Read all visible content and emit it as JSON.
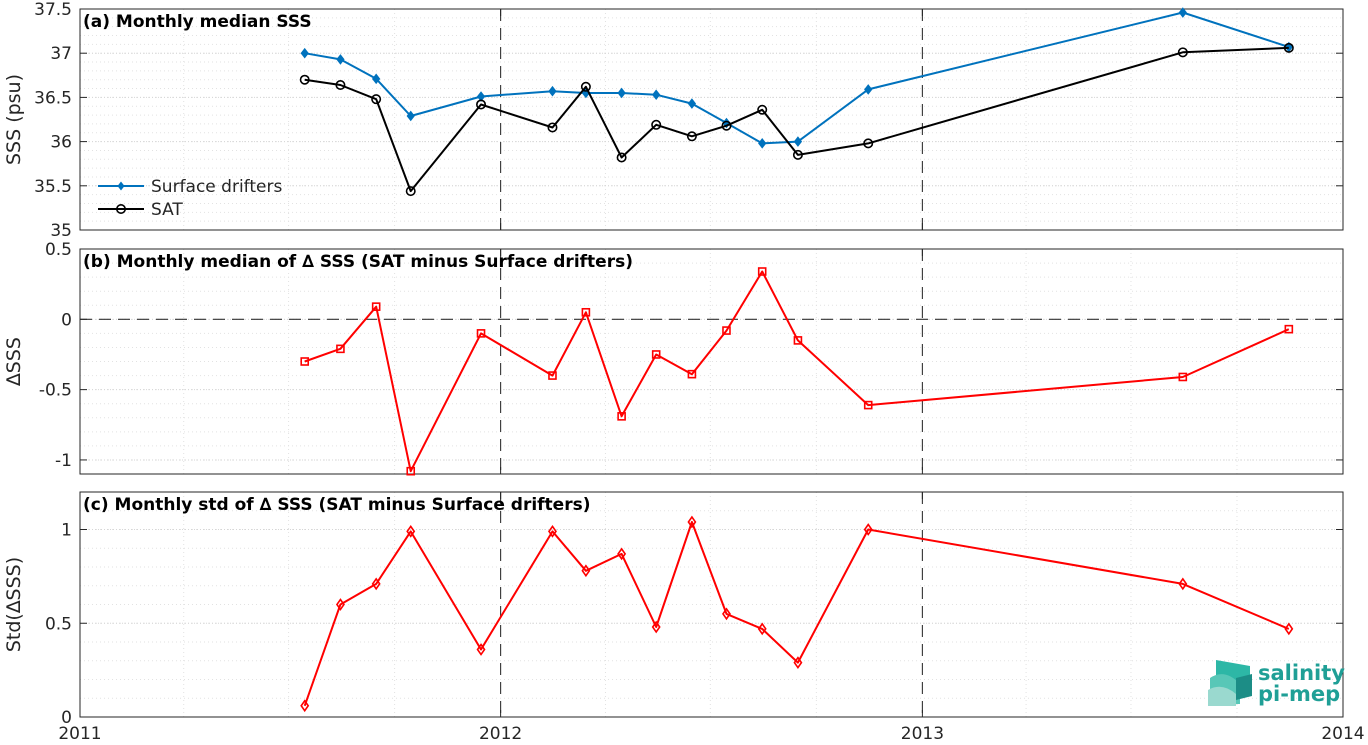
{
  "chart_data": [
    {
      "panel": "a",
      "type": "line",
      "title": "(a) Monthly median SSS",
      "xlabel": "",
      "ylabel": "SSS (psu)",
      "xlim": [
        "2011-01-01",
        "2014-01-01"
      ],
      "ylim": [
        35,
        37.5
      ],
      "yticks": [
        35,
        35.5,
        36,
        36.5,
        37,
        37.5
      ],
      "ytick_labels": [
        "35",
        "35.5",
        "36",
        "36.5",
        "37",
        "37.5"
      ],
      "grid": true,
      "legend_position": "bottom-left",
      "series": [
        {
          "name": "Surface drifters",
          "color": "#0072bd",
          "marker": "diamond-filled",
          "x": [
            "2011-07-15",
            "2011-08-15",
            "2011-09-15",
            "2011-10-15",
            "2011-12-15",
            "2012-02-15",
            "2012-03-15",
            "2012-04-15",
            "2012-05-15",
            "2012-06-15",
            "2012-07-15",
            "2012-08-15",
            "2012-09-15",
            "2012-11-15",
            "2013-08-15",
            "2013-11-15"
          ],
          "y": [
            37.0,
            36.93,
            36.71,
            36.29,
            36.51,
            36.57,
            36.55,
            36.55,
            36.53,
            36.43,
            36.21,
            35.98,
            36.0,
            36.59,
            37.46,
            37.07
          ]
        },
        {
          "name": "SAT",
          "color": "#000000",
          "marker": "circle-open",
          "x": [
            "2011-07-15",
            "2011-08-15",
            "2011-09-15",
            "2011-10-15",
            "2011-12-15",
            "2012-02-15",
            "2012-03-15",
            "2012-04-15",
            "2012-05-15",
            "2012-06-15",
            "2012-07-15",
            "2012-08-15",
            "2012-09-15",
            "2012-11-15",
            "2013-08-15",
            "2013-11-15"
          ],
          "y": [
            36.7,
            36.64,
            36.48,
            35.44,
            36.42,
            36.16,
            36.62,
            35.82,
            36.19,
            36.06,
            36.18,
            36.36,
            35.85,
            35.98,
            37.01,
            37.06
          ]
        }
      ]
    },
    {
      "panel": "b",
      "type": "line",
      "title": "(b) Monthly median of ∆ SSS (SAT minus Surface drifters)",
      "xlabel": "",
      "ylabel": "∆SSS",
      "xlim": [
        "2011-01-01",
        "2014-01-01"
      ],
      "ylim": [
        -1.1,
        0.5
      ],
      "yticks": [
        -1,
        -0.5,
        0,
        0.5
      ],
      "ytick_labels": [
        "-1",
        "-0.5",
        "0",
        "0.5"
      ],
      "grid": true,
      "reference_line": 0,
      "series": [
        {
          "color": "#ff0000",
          "marker": "square-open",
          "x": [
            "2011-07-15",
            "2011-08-15",
            "2011-09-15",
            "2011-10-15",
            "2011-12-15",
            "2012-02-15",
            "2012-03-15",
            "2012-04-15",
            "2012-05-15",
            "2012-06-15",
            "2012-07-15",
            "2012-08-15",
            "2012-09-15",
            "2012-11-15",
            "2013-08-15",
            "2013-11-15"
          ],
          "y": [
            -0.3,
            -0.21,
            0.09,
            -1.08,
            -0.1,
            -0.4,
            0.05,
            -0.69,
            -0.25,
            -0.39,
            -0.08,
            0.34,
            -0.15,
            -0.61,
            -0.41,
            -0.07
          ]
        }
      ]
    },
    {
      "panel": "c",
      "type": "line",
      "title": "(c) Monthly std of ∆ SSS (SAT minus Surface drifters)",
      "xlabel": "",
      "ylabel": "Std(∆SSS)",
      "xlim": [
        "2011-01-01",
        "2014-01-01"
      ],
      "ylim": [
        0,
        1.2
      ],
      "yticks": [
        0,
        0.5,
        1
      ],
      "ytick_labels": [
        "0",
        "0.5",
        "1"
      ],
      "xticks": [
        "2011-01-01",
        "2012-01-01",
        "2013-01-01",
        "2014-01-01"
      ],
      "xtick_labels": [
        "2011",
        "2012",
        "2013",
        "2014"
      ],
      "grid": true,
      "series": [
        {
          "color": "#ff0000",
          "marker": "diamond-open",
          "x": [
            "2011-07-15",
            "2011-08-15",
            "2011-09-15",
            "2011-10-15",
            "2011-12-15",
            "2012-02-15",
            "2012-03-15",
            "2012-04-15",
            "2012-05-15",
            "2012-06-15",
            "2012-07-15",
            "2012-08-15",
            "2012-09-15",
            "2012-11-15",
            "2013-08-15",
            "2013-11-15"
          ],
          "y": [
            0.06,
            0.6,
            0.71,
            0.99,
            0.36,
            0.99,
            0.78,
            0.87,
            0.48,
            1.04,
            0.55,
            0.47,
            0.29,
            1.0,
            0.71,
            0.47
          ]
        }
      ]
    }
  ],
  "logo": {
    "line1": "salinity",
    "line2": "pi-mep",
    "color": "#1f9f96"
  }
}
